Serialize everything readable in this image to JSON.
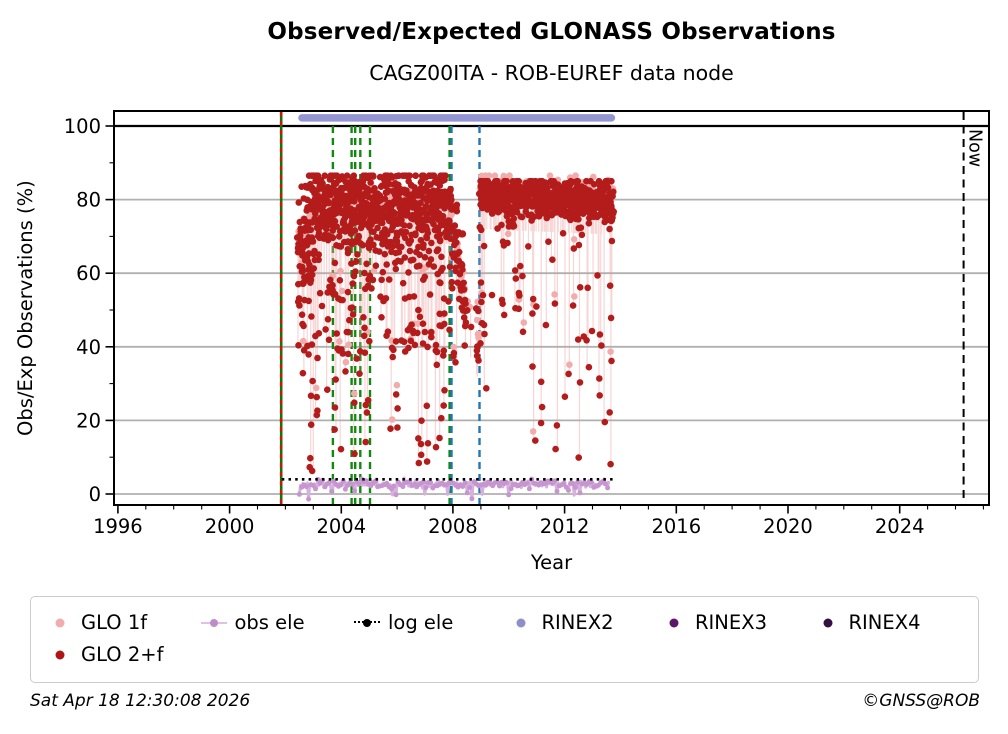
{
  "footer": {
    "timestamp": "Sat Apr 18 12:30:08 2026",
    "copyright": "©GNSS@ROB"
  },
  "legend": {
    "items": [
      {
        "label": "GLO 1f",
        "marker": "dot",
        "color": "#f2acac"
      },
      {
        "label": "obs ele",
        "marker": "line-dot",
        "color": "#c08cc8",
        "line_color": "#ddc2e6"
      },
      {
        "label": "log ele",
        "marker": "dotted-line-dot",
        "color": "#000000"
      },
      {
        "label": "RINEX2",
        "marker": "dot",
        "color": "#8e8ecb"
      },
      {
        "label": "RINEX3",
        "marker": "dot",
        "color": "#5c176b"
      },
      {
        "label": "RINEX4",
        "marker": "dot",
        "color": "#331040"
      },
      {
        "label": "GLO 2+f",
        "marker": "dot",
        "color": "#b01414"
      }
    ]
  },
  "chart_data": {
    "type": "scatter",
    "title": "Observed/Expected GLONASS Observations",
    "subtitle": "CAGZ00ITA - ROB-EUREF data node",
    "x_axis": {
      "label": "Year",
      "range": [
        1995.86,
        2027.2
      ],
      "major_ticks": [
        1996,
        2000,
        2004,
        2008,
        2012,
        2016,
        2020,
        2024
      ],
      "minor_step": 1
    },
    "y_axis": {
      "label": "Obs/Exp Observations (%)",
      "range": [
        -2.99,
        104.08
      ],
      "major_ticks": [
        0,
        20,
        40,
        60,
        80,
        100
      ],
      "minor_ticks": [
        10,
        30,
        50,
        70,
        90
      ],
      "reference_line_at_100": true,
      "gridlines": "horizontal-gray"
    },
    "now_marker": {
      "year": 2026.29,
      "label": "Now"
    },
    "event_lines": {
      "install": {
        "year": 2001.85,
        "style": "solid-green-with-red-dashes"
      },
      "green_dashed_years": [
        2003.7,
        2004.37,
        2004.5,
        2004.68,
        2005.03,
        2007.88
      ],
      "blue_dashed_years": [
        2007.95,
        2008.95
      ]
    },
    "series": {
      "rinex2_bar": {
        "name": "RINEX2",
        "from": 2002.45,
        "to": 2013.82,
        "level": 102.2
      },
      "log_ele": {
        "name": "log ele",
        "from": 2001.87,
        "to": 2013.85,
        "level": 4.0
      },
      "obs_ele": {
        "name": "obs ele",
        "from": 2002.5,
        "to": 2013.62,
        "level": 2.8,
        "jitter_sd": 0.55,
        "dip_frac": 0.07,
        "dip_range": [
          -1.4,
          1.8
        ]
      },
      "glo_2f": {
        "name": "GLO 2+f",
        "summary": "Daily Obs/Exp ratio, ~2002.45 to ~2013.75; dense band 60-86% until 2008, decline to ~40% during 2008, then tight band ~78-85% with sparse drips until 2013.75",
        "segments": [
          {
            "from": 2002.45,
            "to": 2003.05,
            "top_from": 66,
            "top_to": 75,
            "top_sd": 8,
            "cap": 86.5,
            "pink_cap": 88,
            "density": 1,
            "extra": [
              {
                "frac": 0.55,
                "range": [
                  25,
                  65
                ]
              },
              {
                "frac": 0.2,
                "range": [
                  6,
                  25
                ]
              }
            ]
          },
          {
            "from": 2003.05,
            "to": 2007.95,
            "top_from": 78,
            "top_to": 77,
            "top_sd": 6,
            "cap": 86.5,
            "pink_cap": 88,
            "density": 1,
            "extra": [
              {
                "frac": 0.5,
                "range": [
                  35,
                  70
                ]
              },
              {
                "frac": 0.15,
                "range": [
                  8,
                  35
                ]
              }
            ]
          },
          {
            "from": 2007.95,
            "to": 2008.45,
            "top_from": 74,
            "top_to": 52,
            "top_sd": 6,
            "cap": 80,
            "pink_cap": 82,
            "density": 0.9,
            "extra": [
              {
                "frac": 0.3,
                "range": [
                  35,
                  60
                ]
              },
              {
                "frac": 0.08,
                "range": [
                  15,
                  35
                ]
              }
            ]
          },
          {
            "from": 2008.45,
            "to": 2008.92,
            "top_from": 50,
            "top_to": 40,
            "top_sd": 4.5,
            "cap": 60,
            "pink_cap": 62,
            "density": 0.4,
            "extra": [
              {
                "frac": 0.25,
                "range": [
                  36,
                  52
                ]
              }
            ]
          },
          {
            "from": 2008.97,
            "to": 2013.75,
            "top_from": 81,
            "top_to": 79.5,
            "top_sd": 2.8,
            "cap": 85,
            "pink_cap": 86.5,
            "density": 1,
            "extra": [
              {
                "frac": 0.2,
                "range": [
                  40,
                  78
                ]
              },
              {
                "frac": 0.08,
                "range": [
                  8,
                  40
                ]
              }
            ]
          }
        ]
      },
      "glo_1f": {
        "name": "GLO 1f",
        "summary": "Pale-pink companion points and thin vertical streaks behind GLO 2+f, hugging the top of the red cloud"
      }
    },
    "colors": {
      "glo_1f": "#f2acac",
      "glo_2f": "#b41c1c",
      "streak": "rgba(236,152,152,0.40)",
      "obs_ele": "#c795cf",
      "obs_ele_line": "#d5b2de",
      "log_ele": "#000000",
      "rinex2": "#9295d2",
      "green_line": "#007f00",
      "green_dash": "#0f8a0f",
      "red_dash": "#d01212",
      "blue_dash": "#1f77b4",
      "grid": "#b0b0b0"
    }
  }
}
